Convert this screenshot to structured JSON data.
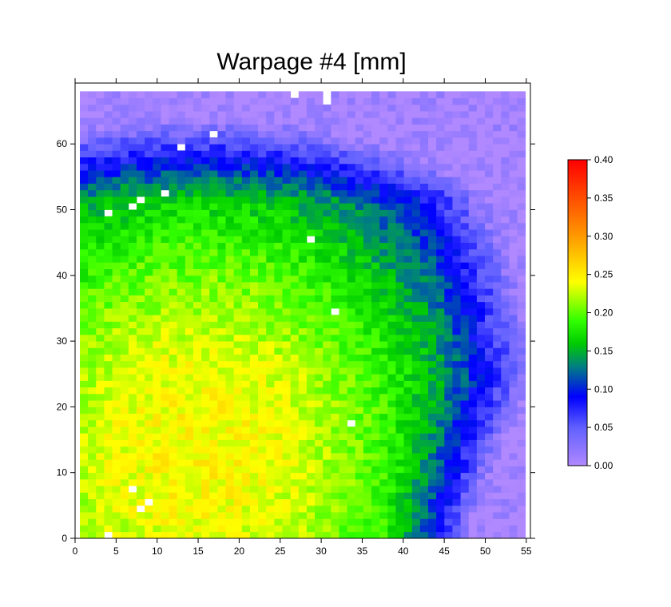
{
  "chart_data": {
    "type": "heatmap",
    "title": "Warpage #4 [mm]",
    "xlabel": "",
    "ylabel": "",
    "xlim": [
      0,
      55.5
    ],
    "ylim": [
      0,
      69
    ],
    "x_ticks": [
      0,
      5,
      10,
      15,
      20,
      25,
      30,
      35,
      40,
      45,
      50,
      55
    ],
    "y_ticks": [
      0,
      10,
      20,
      30,
      40,
      50,
      60
    ],
    "grid": false,
    "cell_size": 1,
    "grid_cols": 55,
    "grid_rows": 68,
    "colorbar": {
      "range": [
        0.0,
        0.4
      ],
      "ticks": [
        "0.00",
        "0.05",
        "0.10",
        "0.15",
        "0.20",
        "0.25",
        "0.30",
        "0.35",
        "0.40"
      ],
      "stops": [
        {
          "value": 0.0,
          "color": "#b088ff"
        },
        {
          "value": 0.05,
          "color": "#6060ff"
        },
        {
          "value": 0.09,
          "color": "#0000ff"
        },
        {
          "value": 0.13,
          "color": "#008080"
        },
        {
          "value": 0.16,
          "color": "#00cc00"
        },
        {
          "value": 0.19,
          "color": "#33ff00"
        },
        {
          "value": 0.24,
          "color": "#ffff00"
        },
        {
          "value": 0.3,
          "color": "#ff9900"
        },
        {
          "value": 0.4,
          "color": "#ff0000"
        }
      ]
    },
    "field_description": {
      "peak": {
        "x": 15,
        "y": 14,
        "value": 0.245
      },
      "low_top_left": {
        "x": 2,
        "y": 67,
        "value": 0.03
      },
      "low_bottom_right": {
        "x": 54,
        "y": 3,
        "value": 0.02
      },
      "low_top_right": {
        "x": 54,
        "y": 67,
        "value": 0.03
      }
    },
    "missing_cells": [
      [
        27,
        68
      ],
      [
        31,
        68
      ],
      [
        31,
        67
      ],
      [
        17,
        62
      ],
      [
        13,
        60
      ],
      [
        11,
        53
      ],
      [
        8,
        52
      ],
      [
        7,
        51
      ],
      [
        4,
        50
      ],
      [
        29,
        46
      ],
      [
        32,
        35
      ],
      [
        34,
        18
      ],
      [
        7,
        8
      ],
      [
        9,
        6
      ],
      [
        8,
        5
      ],
      [
        4,
        1
      ]
    ]
  }
}
